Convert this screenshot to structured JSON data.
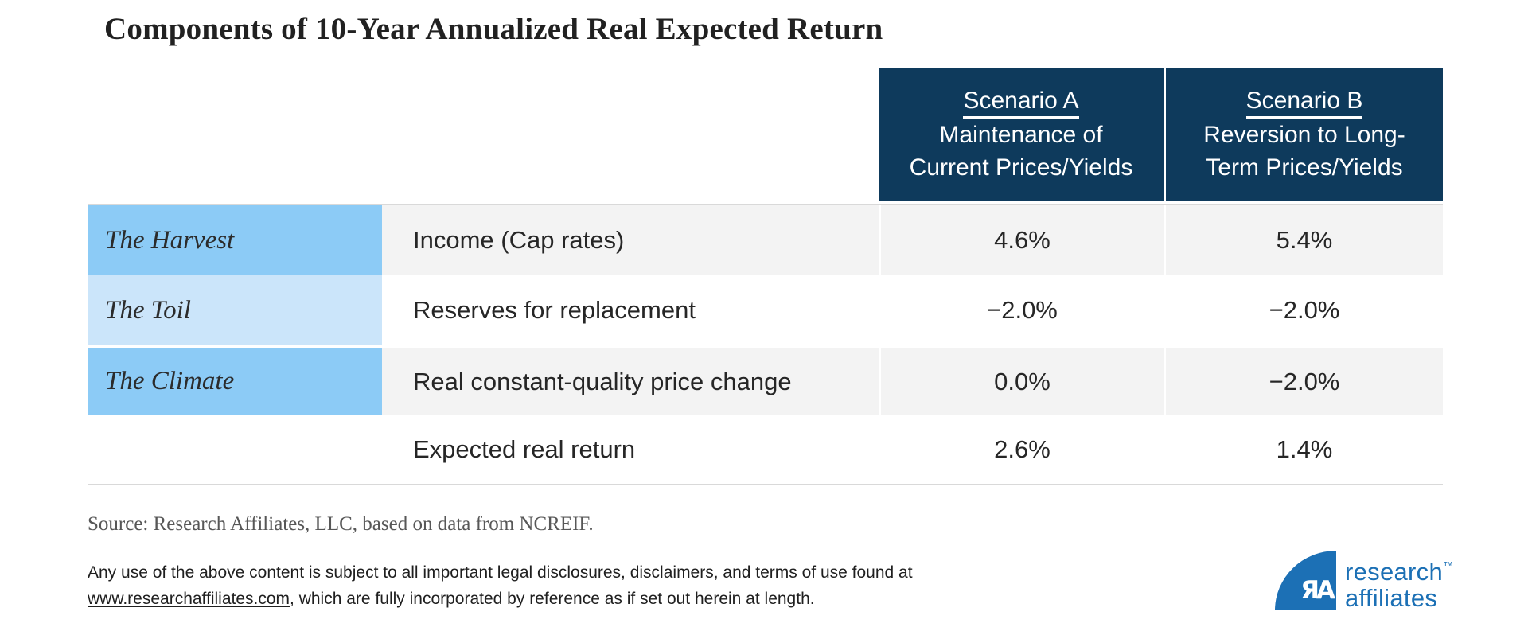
{
  "title": "Components of 10-Year Annualized Real Expected Return",
  "header": {
    "scenario_a": {
      "name": "Scenario A",
      "line2": "Maintenance of",
      "line3": "Current Prices/Yields"
    },
    "scenario_b": {
      "name": "Scenario B",
      "line2": "Reversion to Long-",
      "line3": "Term Prices/Yields"
    }
  },
  "chart_data": {
    "type": "table",
    "title": "Components of 10-Year Annualized Real Expected Return",
    "columns": [
      "Theme",
      "Component",
      "Scenario A: Maintenance of Current Prices/Yields",
      "Scenario B: Reversion to Long-Term Prices/Yields"
    ],
    "rows": [
      {
        "theme": "The Harvest",
        "component": "Income (Cap rates)",
        "scenario_a": "4.6%",
        "scenario_b": "5.4%"
      },
      {
        "theme": "The Toil",
        "component": "Reserves for replacement",
        "scenario_a": "−2.0%",
        "scenario_b": "−2.0%"
      },
      {
        "theme": "The Climate",
        "component": "Real constant-quality price change",
        "scenario_a": "0.0%",
        "scenario_b": "−2.0%"
      },
      {
        "theme": "",
        "component": "Expected real return",
        "scenario_a": "2.6%",
        "scenario_b": "1.4%"
      }
    ]
  },
  "footer": {
    "source": "Source: Research Affiliates, LLC, based on data from NCREIF.",
    "disclaimer_line1": "Any use of the above content is subject to all important legal disclosures, disclaimers, and terms of use found at",
    "disclaimer_link": "www.researchaffiliates.com",
    "disclaimer_line2_rest": ", which are fully incorporated by reference as if set out herein at length.",
    "logo": {
      "monogram": "ЯA",
      "line1": "research",
      "tm": "™",
      "line2": "affiliates"
    }
  },
  "colors": {
    "header_navy": "#0e3a5c",
    "row_label_blue": "#8ccbf6",
    "row_label_light_blue": "#cbe5fa",
    "row_gray": "#f3f3f3",
    "border_gray": "#d9d9d9",
    "logo_blue": "#1c70b5",
    "text_dark": "#262626",
    "source_gray": "#575757"
  }
}
